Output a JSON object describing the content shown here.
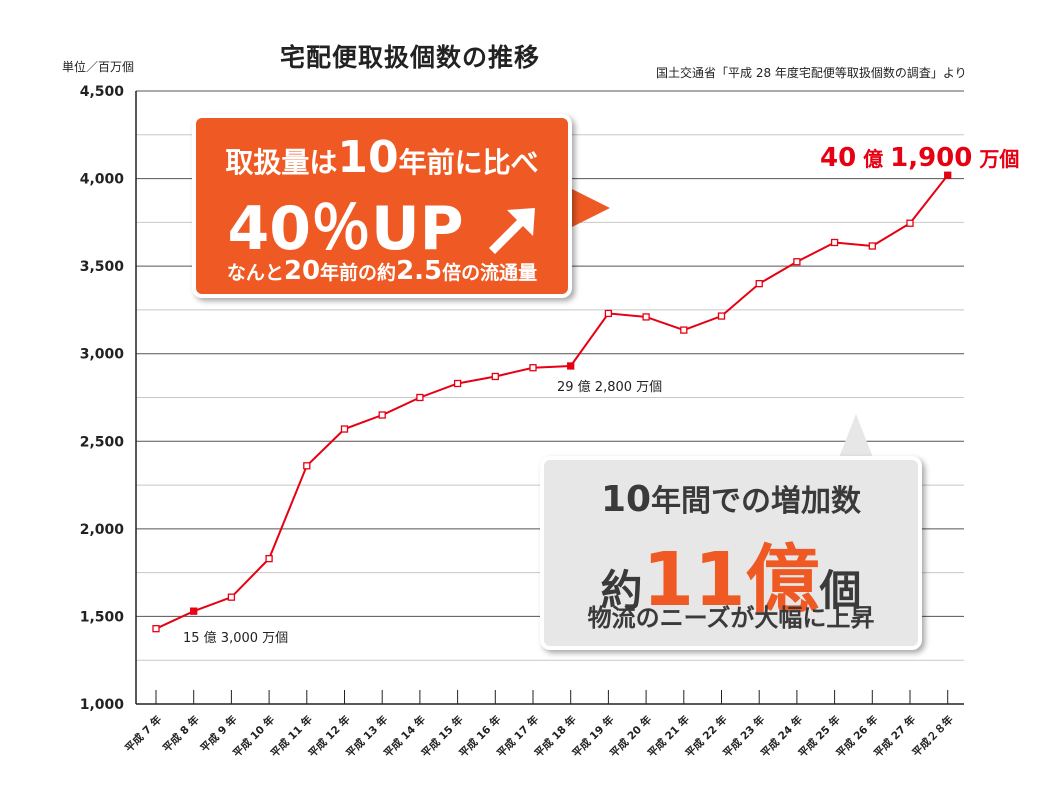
{
  "title": "宅配便取扱個数の推移",
  "source": "国土交通省「平成 28 年度宅配便等取扱個数の調査」より",
  "unit": "単位／百万個",
  "chart_data": {
    "type": "line",
    "title": "宅配便取扱個数の推移",
    "ylabel": "単位／百万個",
    "ylim": [
      1000,
      4500
    ],
    "yticks": [
      1000,
      1500,
      2000,
      2500,
      3000,
      3500,
      4000,
      4500
    ],
    "ytick_labels": [
      "1,000",
      "1,500",
      "2,000",
      "2,500",
      "3,000",
      "3,500",
      "4,000",
      "4,500"
    ],
    "categories": [
      "平成 7 年",
      "平成 8 年",
      "平成 9 年",
      "平成 10 年",
      "平成 11 年",
      "平成 12 年",
      "平成 13 年",
      "平成 14 年",
      "平成 15 年",
      "平成 16 年",
      "平成 17 年",
      "平成 18 年",
      "平成 19 年",
      "平成 20 年",
      "平成 21 年",
      "平成 22 年",
      "平成 23 年",
      "平成 24 年",
      "平成 25 年",
      "平成 26 年",
      "平成 27 年",
      "平成２８年"
    ],
    "values": [
      1430,
      1530,
      1610,
      1830,
      2360,
      2570,
      2650,
      2750,
      2830,
      2870,
      2920,
      2930,
      3230,
      3210,
      3135,
      3215,
      3400,
      3525,
      3635,
      3615,
      3745,
      4019
    ],
    "highlighted_indices": [
      1,
      11,
      21
    ],
    "grid": true,
    "line_color": "#e60012"
  },
  "annotations": {
    "h8": "15 億 3,000 万個",
    "h18": "29 億 2,800 万個",
    "h28_num1": "40",
    "h28_oku": "億",
    "h28_num2": "1,900",
    "h28_tail": "万個"
  },
  "callout_orange": {
    "line1_pre": "取扱量は",
    "line1_num": "10",
    "line1_post": "年前に比べ",
    "line2": "40％UP",
    "line3_pre": "なんと",
    "line3_num1": "20",
    "line3_mid": "年前の約",
    "line3_num2": "2.5",
    "line3_post": "倍の流通量",
    "color": "#ef5a24"
  },
  "callout_gray": {
    "line1_num": "10",
    "line1_text": "年間での増加数",
    "line2_pre": "約",
    "line2_big": "11億",
    "line2_post": "個",
    "line3": "物流のニーズが大幅に上昇",
    "color": "#e7e7e7"
  }
}
